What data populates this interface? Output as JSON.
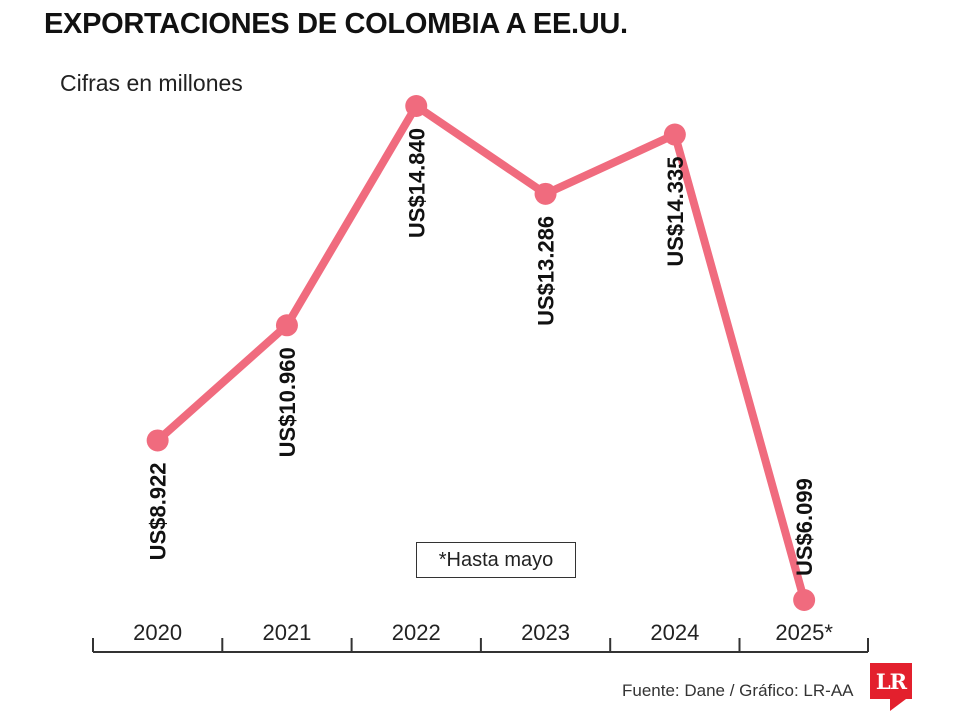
{
  "header": {
    "title": "EXPORTACIONES DE COLOMBIA A EE.UU.",
    "subtitle": "Cifras en millones"
  },
  "note": "*Hasta mayo",
  "footer": {
    "source": "Fuente: Dane / Gráfico: LR-AA",
    "logo_text": "LR"
  },
  "colors": {
    "line": "#f06b7e",
    "axis": "#333333",
    "logo": "#e3202d"
  },
  "chart_data": {
    "type": "line",
    "title": "EXPORTACIONES DE COLOMBIA A EE.UU.",
    "subtitle": "Cifras en millones",
    "xlabel": "",
    "ylabel": "",
    "categories": [
      "2020",
      "2021",
      "2022",
      "2023",
      "2024",
      "2025*"
    ],
    "series": [
      {
        "name": "Exportaciones",
        "values": [
          8922,
          10960,
          14840,
          13286,
          14335,
          6099
        ],
        "labels": [
          "US$8.922",
          "US$10.960",
          "US$14.840",
          "US$13.286",
          "US$14.335",
          "US$6.099"
        ]
      }
    ],
    "ylim": [
      6099,
      14840
    ],
    "grid": false,
    "legend": "none"
  }
}
